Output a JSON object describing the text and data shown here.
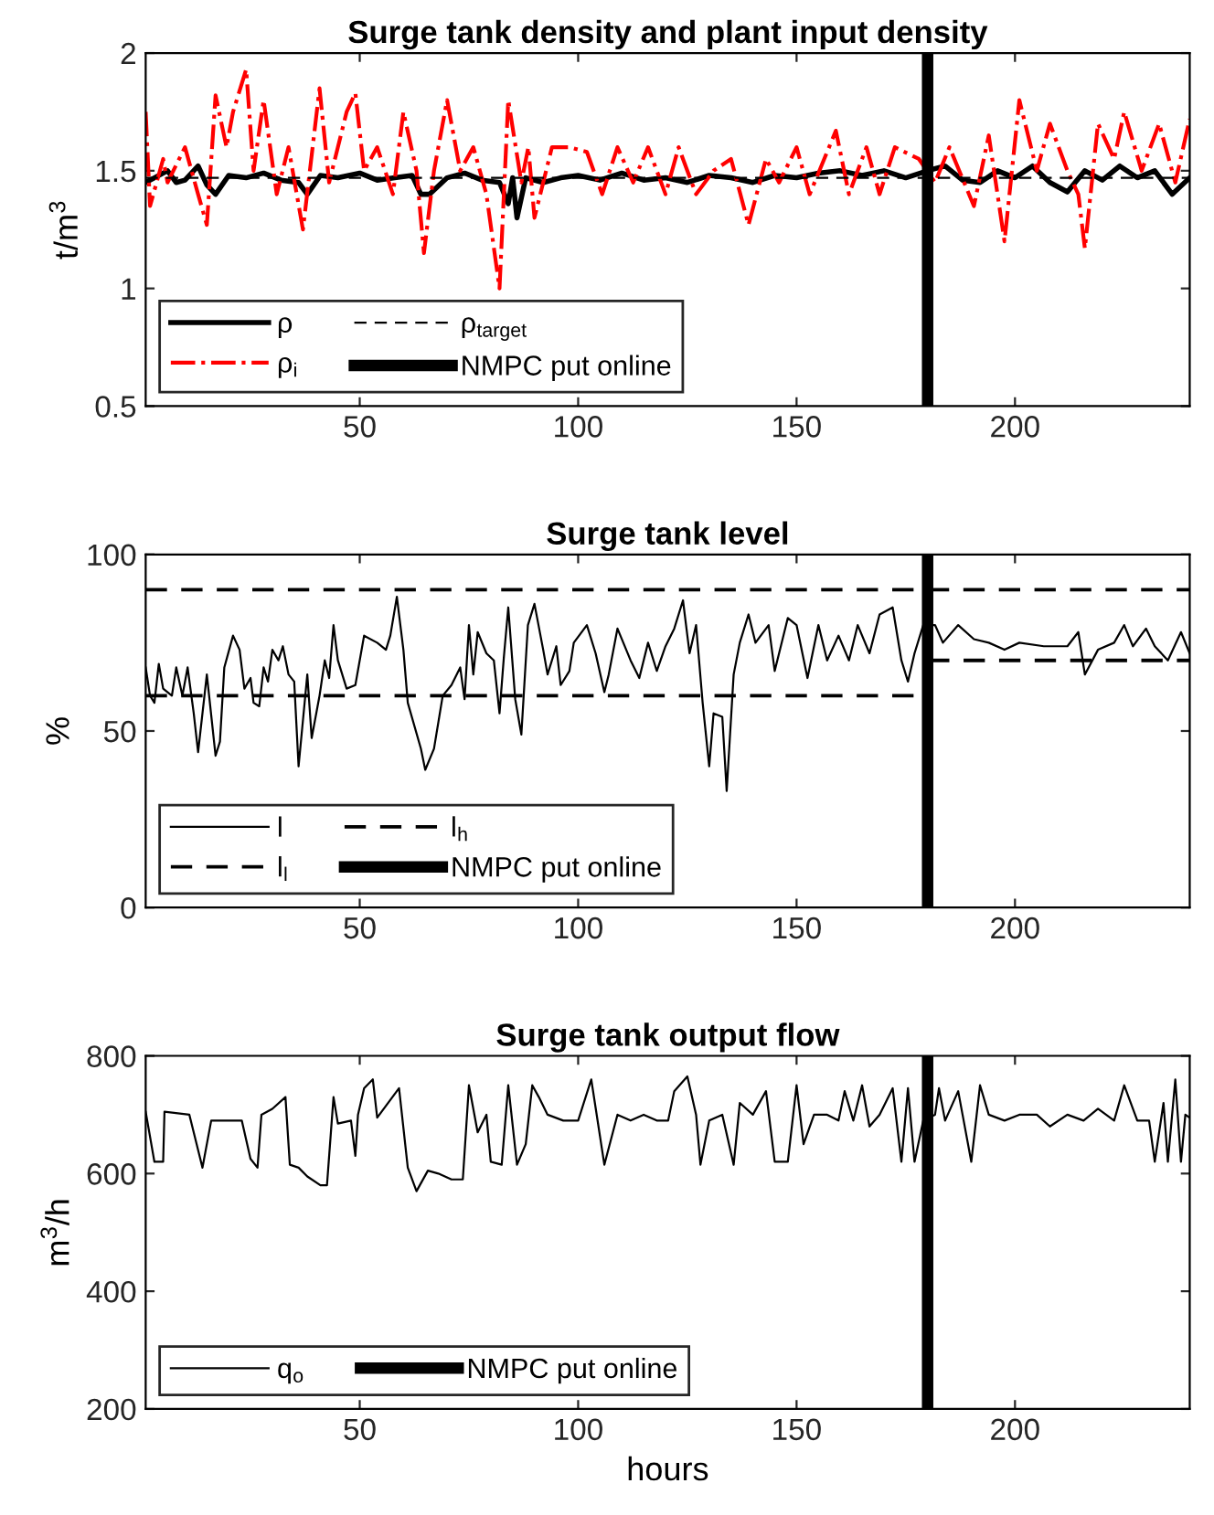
{
  "chart_data": [
    {
      "type": "line",
      "title": "Surge tank density and plant input density",
      "ylabel": "t/m$^{3}$",
      "xlim": [
        1,
        240
      ],
      "xticks": [
        50,
        100,
        150,
        200
      ],
      "ylim": [
        0.5,
        2
      ],
      "yticks": [
        0.5,
        1,
        1.5,
        2
      ],
      "grid": false,
      "legend": "bottom left",
      "marker": "none",
      "series": [
        {
          "name": "ρ",
          "color": "#000000",
          "line_style": "solid",
          "x": [
            1,
            3,
            6,
            8,
            10,
            13,
            15,
            17,
            20,
            24,
            28,
            32,
            36,
            38,
            41,
            45,
            50,
            54,
            58,
            62,
            64,
            66,
            70,
            74,
            78,
            82,
            84,
            85,
            86,
            88,
            92,
            96,
            100,
            105,
            110,
            115,
            120,
            125,
            130,
            135,
            140,
            145,
            150,
            155,
            160,
            165,
            170,
            175,
            180,
            184,
            188,
            192,
            196,
            200,
            204,
            208,
            212,
            216,
            220,
            224,
            228,
            232,
            236,
            240
          ],
          "values": [
            1.45,
            1.47,
            1.5,
            1.45,
            1.46,
            1.52,
            1.44,
            1.4,
            1.48,
            1.47,
            1.49,
            1.46,
            1.45,
            1.4,
            1.48,
            1.47,
            1.49,
            1.46,
            1.47,
            1.48,
            1.4,
            1.4,
            1.47,
            1.49,
            1.46,
            1.45,
            1.36,
            1.47,
            1.3,
            1.47,
            1.45,
            1.47,
            1.48,
            1.46,
            1.49,
            1.46,
            1.47,
            1.45,
            1.48,
            1.47,
            1.45,
            1.48,
            1.47,
            1.49,
            1.5,
            1.48,
            1.5,
            1.47,
            1.5,
            1.52,
            1.46,
            1.45,
            1.5,
            1.47,
            1.52,
            1.45,
            1.41,
            1.5,
            1.46,
            1.52,
            1.47,
            1.5,
            1.4,
            1.47
          ]
        },
        {
          "name": "ρ$_{i}$",
          "color": "#ff0000",
          "line_style": "dashdot",
          "x": [
            1,
            2,
            5,
            6,
            10,
            13,
            15,
            17,
            19.5,
            21,
            24,
            25.7,
            28,
            31,
            33.7,
            37,
            40.8,
            43,
            47,
            49,
            51,
            54,
            57.6,
            60,
            63,
            64.7,
            67,
            70,
            73,
            76,
            79,
            82,
            84,
            87,
            88.6,
            90,
            94,
            98,
            102,
            105.5,
            109,
            112.6,
            116,
            120,
            123,
            127,
            131,
            135,
            139,
            143,
            146,
            150,
            153,
            159,
            162,
            166,
            169,
            172.5,
            178,
            181.7,
            185,
            190.6,
            194,
            197.6,
            201,
            205,
            208,
            212,
            214.5,
            216,
            219,
            222.7,
            225,
            229,
            233,
            236.7,
            240
          ],
          "values": [
            1.75,
            1.35,
            1.55,
            1.45,
            1.6,
            1.4,
            1.27,
            1.82,
            1.6,
            1.75,
            1.93,
            1.5,
            1.8,
            1.4,
            1.6,
            1.25,
            1.85,
            1.45,
            1.75,
            1.83,
            1.5,
            1.6,
            1.4,
            1.75,
            1.5,
            1.15,
            1.5,
            1.8,
            1.5,
            1.6,
            1.4,
            1.0,
            1.8,
            1.45,
            1.6,
            1.3,
            1.6,
            1.6,
            1.58,
            1.4,
            1.6,
            1.45,
            1.6,
            1.4,
            1.6,
            1.4,
            1.5,
            1.55,
            1.27,
            1.55,
            1.45,
            1.6,
            1.4,
            1.67,
            1.4,
            1.6,
            1.4,
            1.6,
            1.55,
            1.45,
            1.6,
            1.35,
            1.65,
            1.2,
            1.8,
            1.5,
            1.7,
            1.5,
            1.4,
            1.17,
            1.7,
            1.55,
            1.75,
            1.5,
            1.7,
            1.45,
            1.72
          ]
        },
        {
          "name": "ρ$_{target}$",
          "color": "#000000",
          "line_style": "dashed",
          "x": [
            1,
            240
          ],
          "values": [
            1.47,
            1.47
          ]
        },
        {
          "name": "NMPC put online",
          "color": "#000000",
          "line_style": "solid",
          "x": [
            180,
            180
          ],
          "values": [
            0.5,
            2
          ]
        }
      ]
    },
    {
      "type": "line",
      "title": "Surge tank level",
      "ylabel": "%",
      "xlim": [
        1,
        240
      ],
      "xticks": [
        50,
        100,
        150,
        200
      ],
      "ylim": [
        0,
        100
      ],
      "yticks": [
        0,
        50,
        100
      ],
      "grid": false,
      "legend": "bottom left",
      "marker": "none",
      "series": [
        {
          "name": "l",
          "color": "#000000",
          "line_style": "solid",
          "x": [
            1,
            2,
            3,
            4,
            5,
            7,
            8,
            9.4,
            10.6,
            12,
            13,
            15,
            17,
            18,
            19,
            21,
            22.5,
            23.6,
            25,
            25.7,
            27,
            28,
            29,
            30,
            31.4,
            32.4,
            33.7,
            35,
            36,
            38,
            39,
            40.8,
            42,
            43,
            44,
            45,
            47,
            49,
            51,
            54,
            56,
            57,
            58.5,
            60,
            61,
            64,
            65,
            67,
            69,
            71,
            73,
            74,
            75,
            76,
            77,
            79,
            80.7,
            82,
            83,
            84,
            85.6,
            87,
            88.5,
            90,
            92,
            93,
            95,
            96,
            98,
            99,
            102,
            104,
            106,
            107,
            109,
            112,
            114,
            116,
            118,
            120,
            122,
            124,
            125.5,
            127,
            128.5,
            130,
            131,
            133,
            134,
            135.6,
            137,
            139,
            140.6,
            143.6,
            145,
            148,
            150,
            152.5,
            155,
            157,
            159.6,
            162,
            164,
            166.7,
            169,
            172,
            174,
            175.5,
            177,
            179,
            181.7,
            183.5,
            187,
            190.6,
            194,
            197.6,
            201,
            206.6,
            212,
            214.5,
            216,
            219,
            222.7,
            225,
            227,
            230,
            232,
            235,
            238,
            240
          ],
          "values": [
            68,
            60,
            58,
            69,
            62,
            60,
            68,
            60,
            68,
            55,
            44,
            66,
            43,
            47,
            68,
            77,
            73,
            62,
            65,
            58,
            57,
            68,
            64,
            73,
            70,
            74,
            66,
            64,
            40,
            66,
            48,
            60,
            70,
            65,
            80,
            70,
            62,
            63,
            77,
            75,
            73,
            77,
            88,
            73,
            58,
            45,
            39,
            45,
            60,
            63,
            68,
            59,
            80,
            66,
            78,
            72,
            70,
            55,
            71,
            85,
            59,
            49,
            80,
            86,
            73,
            66,
            74,
            63,
            67,
            75,
            80,
            72,
            61,
            66,
            79,
            70,
            65,
            75,
            67,
            74,
            79,
            87,
            72,
            80,
            58,
            40,
            55,
            54,
            33,
            66,
            75,
            83,
            75,
            80,
            67,
            82,
            80,
            65,
            80,
            70,
            77,
            70,
            80,
            72,
            83,
            85,
            70,
            64,
            72,
            80,
            80,
            75,
            80,
            76,
            75,
            73,
            75,
            74,
            74,
            78,
            66,
            73,
            75,
            80,
            74,
            79,
            74,
            70,
            78,
            72
          ]
        },
        {
          "name": "l$_{l}$",
          "color": "#000000",
          "line_style": "dashed",
          "x": [
            1,
            180,
            180,
            240
          ],
          "values": [
            60,
            60,
            70,
            70
          ]
        },
        {
          "name": "l$_{h}$",
          "color": "#000000",
          "line_style": "dashed",
          "x": [
            1,
            240
          ],
          "values": [
            90,
            90
          ]
        },
        {
          "name": "NMPC put online",
          "color": "#000000",
          "line_style": "solid",
          "x": [
            180,
            180
          ],
          "values": [
            0,
            100
          ]
        }
      ]
    },
    {
      "type": "line",
      "title": "Surge tank output flow",
      "xlabel": "hours",
      "ylabel": "m$^{3}$/h",
      "xlim": [
        1,
        240
      ],
      "xticks": [
        50,
        100,
        150,
        200
      ],
      "ylim": [
        200,
        800
      ],
      "yticks": [
        200,
        400,
        600,
        800
      ],
      "grid": false,
      "legend": "bottom left",
      "marker": "none",
      "series": [
        {
          "name": "q$_{o}$",
          "color": "#000000",
          "line_style": "solid",
          "x": [
            1,
            3,
            5,
            5.3,
            11,
            14,
            16,
            19.5,
            23,
            25,
            26.6,
            27.5,
            30,
            33,
            34,
            36,
            38,
            41,
            42.5,
            44,
            45,
            48,
            49,
            49.6,
            51,
            53,
            54,
            59,
            61,
            63,
            65.6,
            68,
            71,
            73.6,
            75,
            77,
            79,
            80,
            82.5,
            84,
            86,
            88,
            89.5,
            91,
            93,
            96.6,
            100,
            103,
            106,
            109,
            112,
            115,
            118,
            120.6,
            122,
            125,
            127,
            128,
            130,
            133,
            135.6,
            137,
            140,
            143,
            145,
            148,
            150,
            151.6,
            154,
            157,
            159.6,
            161,
            163,
            165,
            166.7,
            169,
            172,
            174,
            175.5,
            177,
            179,
            181.7,
            182.6,
            184,
            187,
            188,
            190,
            192,
            194,
            197.6,
            201,
            205,
            208,
            212,
            215.7,
            219,
            222.7,
            225,
            228,
            230.7,
            232,
            234,
            235,
            236.7,
            238,
            239,
            240
          ],
          "values": [
            705,
            620,
            620,
            705,
            700,
            610,
            690,
            690,
            690,
            625,
            610,
            700,
            710,
            730,
            615,
            610,
            595,
            580,
            580,
            730,
            685,
            690,
            630,
            700,
            745,
            760,
            695,
            745,
            610,
            570,
            605,
            600,
            590,
            590,
            750,
            670,
            700,
            620,
            615,
            750,
            615,
            650,
            750,
            730,
            700,
            690,
            690,
            760,
            615,
            700,
            690,
            700,
            690,
            690,
            740,
            765,
            700,
            615,
            690,
            700,
            615,
            720,
            700,
            740,
            620,
            620,
            750,
            650,
            700,
            700,
            690,
            740,
            690,
            750,
            680,
            700,
            745,
            620,
            745,
            620,
            690,
            700,
            745,
            690,
            740,
            700,
            620,
            750,
            700,
            690,
            700,
            700,
            680,
            700,
            690,
            710,
            690,
            750,
            690,
            690,
            620,
            720,
            620,
            760,
            620,
            700,
            695
          ]
        },
        {
          "name": "NMPC put online",
          "color": "#000000",
          "line_style": "solid",
          "x": [
            180,
            180
          ],
          "values": [
            200,
            800
          ]
        }
      ]
    }
  ]
}
